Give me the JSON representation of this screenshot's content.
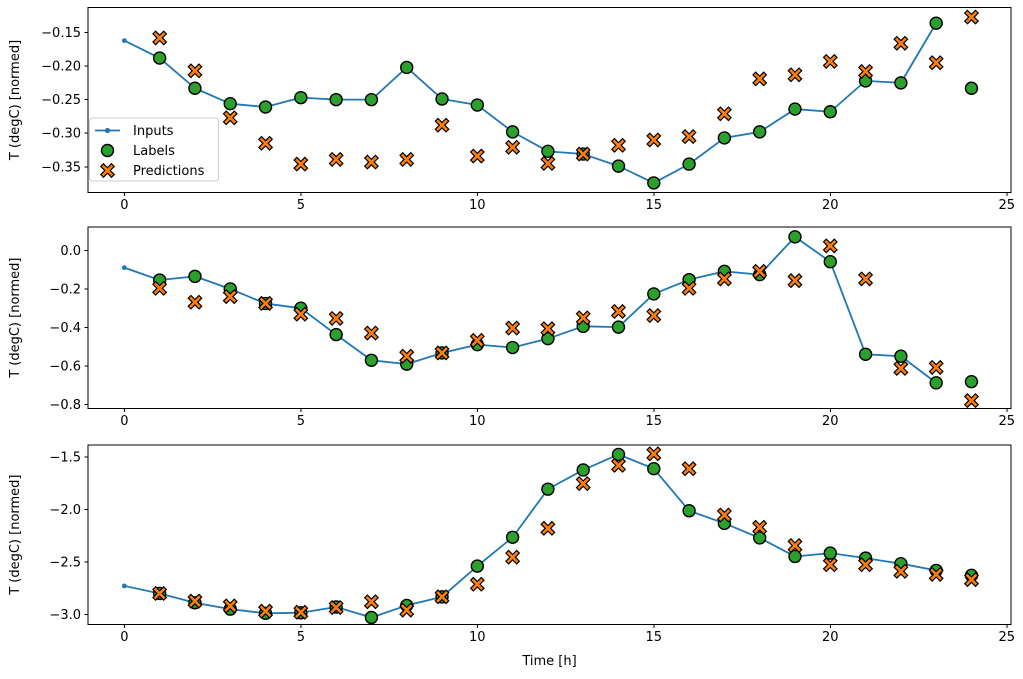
{
  "figure": {
    "background": "#ffffff"
  },
  "colors": {
    "inputs": "#1f77b4",
    "labels": "#2ca02c",
    "predictions": "#ff7f0e",
    "marker_edge": "#000000",
    "legend_border": "#cccccc",
    "legend_background": "#ffffff"
  },
  "axes": {
    "xlabel": "Time [h]",
    "xlim": [
      -1.03,
      25.12
    ],
    "xticks": [
      0,
      5,
      10,
      15,
      20,
      25
    ],
    "xtick_labels": [
      "0",
      "5",
      "10",
      "15",
      "20",
      "25"
    ]
  },
  "legend": {
    "entries": [
      "Inputs",
      "Labels",
      "Predictions"
    ],
    "location": "upper left of subplot 1"
  },
  "chart_data": [
    {
      "type": "line",
      "title": "",
      "ylabel": "T (degC) [normed]",
      "ylim": [
        -0.388,
        -0.113
      ],
      "yticks": [
        -0.35,
        -0.3,
        -0.25,
        -0.2,
        -0.15
      ],
      "ytick_labels": [
        "−0.35",
        "−0.30",
        "−0.25",
        "−0.20",
        "−0.15"
      ],
      "legend": true,
      "series": [
        {
          "name": "Inputs",
          "kind": "line",
          "marker": "dot",
          "color": "#1f77b4",
          "x": [
            0,
            1,
            2,
            3,
            4,
            5,
            6,
            7,
            8,
            9,
            10,
            11,
            12,
            13,
            14,
            15,
            16,
            17,
            18,
            19,
            20,
            21,
            22,
            23
          ],
          "values": [
            -0.162,
            -0.188,
            -0.233,
            -0.256,
            -0.261,
            -0.247,
            -0.25,
            -0.25,
            -0.202,
            -0.249,
            -0.258,
            -0.298,
            -0.327,
            -0.331,
            -0.349,
            -0.374,
            -0.346,
            -0.307,
            -0.298,
            -0.264,
            -0.268,
            -0.222,
            -0.225,
            -0.136
          ]
        },
        {
          "name": "Labels",
          "kind": "scatter",
          "marker": "circle",
          "color": "#2ca02c",
          "x": [
            1,
            2,
            3,
            4,
            5,
            6,
            7,
            8,
            9,
            10,
            11,
            12,
            13,
            14,
            15,
            16,
            17,
            18,
            19,
            20,
            21,
            22,
            23,
            24
          ],
          "values": [
            -0.188,
            -0.233,
            -0.256,
            -0.261,
            -0.247,
            -0.25,
            -0.25,
            -0.202,
            -0.249,
            -0.258,
            -0.298,
            -0.327,
            -0.331,
            -0.349,
            -0.374,
            -0.346,
            -0.307,
            -0.298,
            -0.264,
            -0.268,
            -0.222,
            -0.225,
            -0.136,
            -0.233
          ]
        },
        {
          "name": "Predictions",
          "kind": "scatter",
          "marker": "X",
          "color": "#ff7f0e",
          "x": [
            1,
            2,
            3,
            4,
            5,
            6,
            7,
            8,
            9,
            10,
            11,
            12,
            13,
            14,
            15,
            16,
            17,
            18,
            19,
            20,
            21,
            22,
            23,
            24
          ],
          "values": [
            -0.158,
            -0.207,
            -0.277,
            -0.315,
            -0.346,
            -0.339,
            -0.343,
            -0.339,
            -0.288,
            -0.334,
            -0.321,
            -0.345,
            -0.331,
            -0.318,
            -0.31,
            -0.305,
            -0.271,
            -0.219,
            -0.213,
            -0.193,
            -0.208,
            -0.166,
            -0.195,
            -0.127
          ]
        }
      ]
    },
    {
      "type": "line",
      "title": "",
      "ylabel": "T (degC) [normed]",
      "ylim": [
        -0.819,
        0.121
      ],
      "yticks": [
        -0.8,
        -0.6,
        -0.4,
        -0.2,
        0.0
      ],
      "ytick_labels": [
        "−0.8",
        "−0.6",
        "−0.4",
        "−0.2",
        "0.0"
      ],
      "legend": false,
      "series": [
        {
          "name": "Inputs",
          "kind": "line",
          "marker": "dot",
          "color": "#1f77b4",
          "x": [
            0,
            1,
            2,
            3,
            4,
            5,
            6,
            7,
            8,
            9,
            10,
            11,
            12,
            13,
            14,
            15,
            16,
            17,
            18,
            19,
            20,
            21,
            22,
            23
          ],
          "values": [
            -0.09,
            -0.154,
            -0.135,
            -0.2,
            -0.276,
            -0.3,
            -0.437,
            -0.57,
            -0.59,
            -0.532,
            -0.489,
            -0.504,
            -0.458,
            -0.394,
            -0.398,
            -0.226,
            -0.152,
            -0.109,
            -0.126,
            0.07,
            -0.059,
            -0.539,
            -0.549,
            -0.687
          ]
        },
        {
          "name": "Labels",
          "kind": "scatter",
          "marker": "circle",
          "color": "#2ca02c",
          "x": [
            1,
            2,
            3,
            4,
            5,
            6,
            7,
            8,
            9,
            10,
            11,
            12,
            13,
            14,
            15,
            16,
            17,
            18,
            19,
            20,
            21,
            22,
            23,
            24
          ],
          "values": [
            -0.154,
            -0.135,
            -0.2,
            -0.276,
            -0.3,
            -0.437,
            -0.57,
            -0.59,
            -0.532,
            -0.489,
            -0.504,
            -0.458,
            -0.394,
            -0.398,
            -0.226,
            -0.152,
            -0.109,
            -0.126,
            0.07,
            -0.059,
            -0.539,
            -0.549,
            -0.687,
            -0.681
          ]
        },
        {
          "name": "Predictions",
          "kind": "scatter",
          "marker": "X",
          "color": "#ff7f0e",
          "x": [
            1,
            2,
            3,
            4,
            5,
            6,
            7,
            8,
            9,
            10,
            11,
            12,
            13,
            14,
            15,
            16,
            17,
            18,
            19,
            20,
            21,
            22,
            23,
            24
          ],
          "values": [
            -0.197,
            -0.269,
            -0.24,
            -0.275,
            -0.331,
            -0.353,
            -0.429,
            -0.549,
            -0.532,
            -0.467,
            -0.403,
            -0.406,
            -0.35,
            -0.317,
            -0.338,
            -0.197,
            -0.148,
            -0.109,
            -0.157,
            0.023,
            -0.148,
            -0.612,
            -0.607,
            -0.779
          ]
        }
      ]
    },
    {
      "type": "line",
      "title": "",
      "ylabel": "T (degC) [normed]",
      "ylim": [
        -3.095,
        -1.385
      ],
      "yticks": [
        -3.0,
        -2.5,
        -2.0,
        -1.5
      ],
      "ytick_labels": [
        "−3.0",
        "−2.5",
        "−2.0",
        "−1.5"
      ],
      "legend": false,
      "series": [
        {
          "name": "Inputs",
          "kind": "line",
          "marker": "dot",
          "color": "#1f77b4",
          "x": [
            0,
            1,
            2,
            3,
            4,
            5,
            6,
            7,
            8,
            9,
            10,
            11,
            12,
            13,
            14,
            15,
            16,
            17,
            18,
            19,
            20,
            21,
            22,
            23
          ],
          "values": [
            -2.729,
            -2.801,
            -2.89,
            -2.95,
            -2.99,
            -2.985,
            -2.93,
            -3.03,
            -2.915,
            -2.833,
            -2.54,
            -2.265,
            -1.806,
            -1.623,
            -1.475,
            -1.611,
            -2.012,
            -2.132,
            -2.271,
            -2.448,
            -2.416,
            -2.464,
            -2.517,
            -2.581
          ]
        },
        {
          "name": "Labels",
          "kind": "scatter",
          "marker": "circle",
          "color": "#2ca02c",
          "x": [
            1,
            2,
            3,
            4,
            5,
            6,
            7,
            8,
            9,
            10,
            11,
            12,
            13,
            14,
            15,
            16,
            17,
            18,
            19,
            20,
            21,
            22,
            23,
            24
          ],
          "values": [
            -2.801,
            -2.89,
            -2.95,
            -2.99,
            -2.985,
            -2.93,
            -3.03,
            -2.915,
            -2.833,
            -2.54,
            -2.265,
            -1.806,
            -1.623,
            -1.475,
            -1.611,
            -2.012,
            -2.132,
            -2.271,
            -2.448,
            -2.416,
            -2.464,
            -2.517,
            -2.581,
            -2.628
          ]
        },
        {
          "name": "Predictions",
          "kind": "scatter",
          "marker": "X",
          "color": "#ff7f0e",
          "x": [
            1,
            2,
            3,
            4,
            5,
            6,
            7,
            8,
            9,
            10,
            11,
            12,
            13,
            14,
            15,
            16,
            17,
            18,
            19,
            20,
            21,
            22,
            23,
            24
          ],
          "values": [
            -2.801,
            -2.874,
            -2.92,
            -2.97,
            -2.98,
            -2.935,
            -2.88,
            -2.96,
            -2.833,
            -2.713,
            -2.455,
            -2.18,
            -1.753,
            -1.579,
            -1.469,
            -1.611,
            -2.053,
            -2.17,
            -2.344,
            -2.527,
            -2.527,
            -2.59,
            -2.619,
            -2.669
          ]
        }
      ]
    }
  ]
}
